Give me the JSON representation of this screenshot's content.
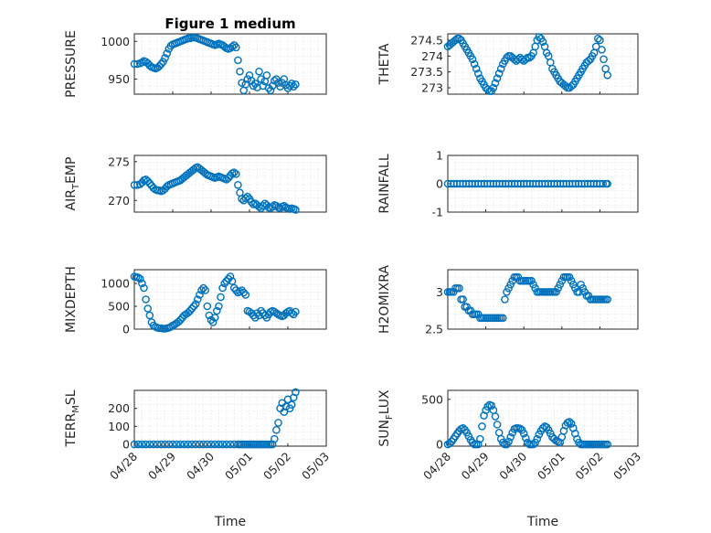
{
  "chart_data": [
    {
      "type": "scatter",
      "title": "Figure 1 medium",
      "ylabel": "PRESSURE",
      "xlim": [
        0,
        5
      ],
      "ylim": [
        930,
        1010
      ],
      "yticks": [
        950,
        1000
      ],
      "x_tick_labels": [
        "04/28",
        "04/29",
        "04/30",
        "05/01",
        "05/02",
        "05/03"
      ],
      "show_x_tick_labels": false,
      "x": [
        0.0,
        0.08,
        0.15,
        0.2,
        0.25,
        0.3,
        0.35,
        0.4,
        0.45,
        0.5,
        0.55,
        0.6,
        0.65,
        0.7,
        0.75,
        0.8,
        0.85,
        0.9,
        0.95,
        1.0,
        1.05,
        1.1,
        1.15,
        1.2,
        1.25,
        1.3,
        1.35,
        1.4,
        1.45,
        1.5,
        1.55,
        1.6,
        1.65,
        1.7,
        1.75,
        1.8,
        1.85,
        1.9,
        1.95,
        2.0,
        2.05,
        2.1,
        2.15,
        2.2,
        2.25,
        2.3,
        2.35,
        2.4,
        2.45,
        2.5,
        2.55,
        2.6,
        2.65,
        2.7,
        2.75,
        2.8,
        2.85,
        2.9,
        2.95,
        3.0,
        3.05,
        3.1,
        3.15,
        3.2,
        3.25,
        3.3,
        3.35,
        3.4,
        3.45,
        3.5,
        3.55,
        3.6,
        3.65,
        3.7,
        3.75,
        3.8,
        3.85,
        3.9,
        3.95,
        4.0,
        4.05,
        4.1,
        4.15,
        4.2
      ],
      "y": [
        970,
        970,
        971,
        972,
        974,
        973,
        971,
        968,
        966,
        965,
        964,
        965,
        967,
        970,
        973,
        978,
        984,
        990,
        994,
        996,
        997,
        998,
        999,
        1000,
        1001,
        1002,
        1003,
        1004,
        1004,
        1005,
        1005,
        1005,
        1004,
        1003,
        1002,
        1001,
        1000,
        999,
        998,
        997,
        996,
        995,
        996,
        997,
        996,
        995,
        993,
        991,
        990,
        991,
        993,
        995,
        992,
        975,
        960,
        945,
        935,
        943,
        950,
        955,
        948,
        941,
        944,
        939,
        960,
        950,
        941,
        947,
        955,
        938,
        935,
        941,
        948,
        950,
        945,
        940,
        945,
        950,
        942,
        938,
        941,
        944,
        940,
        943
      ]
    },
    {
      "type": "scatter",
      "ylabel": "THETA",
      "xlim": [
        0,
        5
      ],
      "ylim": [
        272.8,
        274.7
      ],
      "yticks": [
        273,
        273.5,
        274,
        274.5
      ],
      "show_x_tick_labels": false,
      "x": [
        0.0,
        0.05,
        0.1,
        0.15,
        0.2,
        0.25,
        0.3,
        0.35,
        0.4,
        0.45,
        0.5,
        0.55,
        0.6,
        0.65,
        0.7,
        0.75,
        0.8,
        0.85,
        0.9,
        0.95,
        1.0,
        1.05,
        1.1,
        1.15,
        1.2,
        1.25,
        1.3,
        1.35,
        1.4,
        1.45,
        1.5,
        1.55,
        1.6,
        1.65,
        1.7,
        1.75,
        1.8,
        1.85,
        1.9,
        1.95,
        2.0,
        2.05,
        2.1,
        2.15,
        2.2,
        2.25,
        2.3,
        2.35,
        2.4,
        2.45,
        2.5,
        2.55,
        2.6,
        2.65,
        2.7,
        2.75,
        2.8,
        2.85,
        2.9,
        2.95,
        3.0,
        3.05,
        3.1,
        3.15,
        3.2,
        3.25,
        3.3,
        3.35,
        3.4,
        3.45,
        3.5,
        3.55,
        3.6,
        3.65,
        3.7,
        3.75,
        3.8,
        3.85,
        3.9,
        3.95,
        4.0,
        4.05,
        4.1,
        4.15,
        4.2
      ],
      "y": [
        274.3,
        274.35,
        274.4,
        274.45,
        274.5,
        274.55,
        274.55,
        274.5,
        274.4,
        274.3,
        274.2,
        274.1,
        274.0,
        273.9,
        273.75,
        273.6,
        273.45,
        273.3,
        273.2,
        273.1,
        273.0,
        272.95,
        272.9,
        272.9,
        273.0,
        273.15,
        273.3,
        273.45,
        273.6,
        273.75,
        273.85,
        273.95,
        274.0,
        274.0,
        273.95,
        273.9,
        273.85,
        273.9,
        273.95,
        273.9,
        273.85,
        273.9,
        273.95,
        273.95,
        274.0,
        274.1,
        274.3,
        274.5,
        274.6,
        274.55,
        274.45,
        274.3,
        274.1,
        274.0,
        273.8,
        273.6,
        273.5,
        273.4,
        273.3,
        273.2,
        273.15,
        273.1,
        273.05,
        273.0,
        273.0,
        273.05,
        273.1,
        273.2,
        273.3,
        273.4,
        273.5,
        273.6,
        273.7,
        273.8,
        273.85,
        273.9,
        274.0,
        274.1,
        274.3,
        274.55,
        274.5,
        274.2,
        273.9,
        273.6,
        273.4
      ]
    },
    {
      "type": "scatter",
      "ylabel": "AIR_TEMP",
      "ylabel_main": "AIR",
      "ylabel_sub": "T",
      "ylabel_rest": "EMP",
      "xlim": [
        0,
        5
      ],
      "ylim": [
        268.5,
        275.8
      ],
      "yticks": [
        270,
        275
      ],
      "show_x_tick_labels": false,
      "x": [
        0.0,
        0.08,
        0.15,
        0.2,
        0.25,
        0.3,
        0.35,
        0.4,
        0.45,
        0.5,
        0.55,
        0.6,
        0.65,
        0.7,
        0.75,
        0.8,
        0.85,
        0.9,
        0.95,
        1.0,
        1.05,
        1.1,
        1.15,
        1.2,
        1.25,
        1.3,
        1.35,
        1.4,
        1.45,
        1.5,
        1.55,
        1.6,
        1.65,
        1.7,
        1.75,
        1.8,
        1.85,
        1.9,
        1.95,
        2.0,
        2.05,
        2.1,
        2.15,
        2.2,
        2.25,
        2.3,
        2.35,
        2.4,
        2.45,
        2.5,
        2.55,
        2.6,
        2.65,
        2.7,
        2.75,
        2.8,
        2.85,
        2.9,
        2.95,
        3.0,
        3.05,
        3.1,
        3.15,
        3.2,
        3.25,
        3.3,
        3.35,
        3.4,
        3.45,
        3.5,
        3.55,
        3.6,
        3.65,
        3.7,
        3.75,
        3.8,
        3.85,
        3.9,
        3.95,
        4.0,
        4.05,
        4.1,
        4.15,
        4.2
      ],
      "y": [
        272.0,
        272.0,
        272.1,
        272.3,
        272.6,
        272.7,
        272.5,
        272.2,
        271.9,
        271.6,
        271.4,
        271.3,
        271.3,
        271.2,
        271.3,
        271.5,
        271.8,
        272.0,
        272.1,
        272.2,
        272.3,
        272.4,
        272.5,
        272.6,
        272.8,
        273.0,
        273.2,
        273.4,
        273.6,
        273.8,
        274.0,
        274.2,
        274.3,
        274.1,
        273.9,
        273.7,
        273.5,
        273.3,
        273.2,
        273.1,
        273.0,
        272.9,
        273.0,
        273.1,
        273.0,
        272.9,
        272.8,
        272.7,
        272.9,
        273.2,
        273.5,
        273.6,
        273.4,
        272.0,
        271.0,
        270.2,
        270.0,
        270.3,
        270.5,
        270.2,
        269.8,
        269.5,
        269.6,
        269.4,
        269.2,
        269.0,
        269.3,
        269.6,
        269.4,
        269.1,
        269.0,
        269.2,
        269.4,
        269.3,
        269.1,
        269.0,
        269.2,
        269.3,
        269.1,
        269.0,
        268.9,
        269.0,
        268.9,
        268.8
      ]
    },
    {
      "type": "scatter",
      "ylabel": "RAINFALL",
      "xlim": [
        0,
        5
      ],
      "ylim": [
        -1,
        1
      ],
      "yticks": [
        -1,
        0,
        1
      ],
      "show_x_tick_labels": false,
      "x": [
        0.0,
        0.08,
        0.16,
        0.24,
        0.32,
        0.4,
        0.48,
        0.56,
        0.64,
        0.72,
        0.8,
        0.88,
        0.96,
        1.04,
        1.12,
        1.2,
        1.28,
        1.36,
        1.44,
        1.52,
        1.6,
        1.68,
        1.76,
        1.84,
        1.92,
        2.0,
        2.08,
        2.16,
        2.24,
        2.32,
        2.4,
        2.48,
        2.56,
        2.64,
        2.72,
        2.8,
        2.88,
        2.96,
        3.04,
        3.12,
        3.2,
        3.28,
        3.36,
        3.44,
        3.52,
        3.6,
        3.68,
        3.76,
        3.84,
        3.92,
        4.0,
        4.08,
        4.16,
        4.2
      ],
      "y": [
        0,
        0,
        0,
        0,
        0,
        0,
        0,
        0,
        0,
        0,
        0,
        0,
        0,
        0,
        0,
        0,
        0,
        0,
        0,
        0,
        0,
        0,
        0,
        0,
        0,
        0,
        0,
        0,
        0,
        0,
        0,
        0,
        0,
        0,
        0,
        0,
        0,
        0,
        0,
        0,
        0,
        0,
        0,
        0,
        0,
        0,
        0,
        0,
        0,
        0,
        0,
        0,
        0,
        0
      ]
    },
    {
      "type": "scatter",
      "ylabel": "MIXDEPTH",
      "xlim": [
        0,
        5
      ],
      "ylim": [
        0,
        1300
      ],
      "yticks": [
        0,
        500,
        1000
      ],
      "show_x_tick_labels": false,
      "x": [
        0.0,
        0.05,
        0.1,
        0.15,
        0.2,
        0.25,
        0.3,
        0.35,
        0.4,
        0.45,
        0.5,
        0.55,
        0.6,
        0.65,
        0.7,
        0.75,
        0.8,
        0.85,
        0.9,
        0.95,
        1.0,
        1.05,
        1.1,
        1.15,
        1.2,
        1.25,
        1.3,
        1.35,
        1.4,
        1.45,
        1.5,
        1.55,
        1.6,
        1.65,
        1.7,
        1.75,
        1.8,
        1.85,
        1.9,
        1.95,
        2.0,
        2.05,
        2.1,
        2.15,
        2.2,
        2.25,
        2.3,
        2.35,
        2.4,
        2.45,
        2.5,
        2.55,
        2.6,
        2.65,
        2.7,
        2.75,
        2.8,
        2.85,
        2.9,
        2.95,
        3.0,
        3.05,
        3.1,
        3.15,
        3.2,
        3.25,
        3.3,
        3.35,
        3.4,
        3.45,
        3.5,
        3.55,
        3.6,
        3.65,
        3.7,
        3.75,
        3.8,
        3.85,
        3.9,
        3.95,
        4.0,
        4.05,
        4.1,
        4.15,
        4.2
      ],
      "y": [
        1150,
        1140,
        1130,
        1100,
        1000,
        900,
        650,
        450,
        300,
        150,
        80,
        50,
        30,
        20,
        20,
        10,
        10,
        20,
        30,
        50,
        80,
        100,
        130,
        160,
        200,
        250,
        300,
        330,
        360,
        400,
        450,
        500,
        550,
        650,
        750,
        850,
        900,
        850,
        500,
        300,
        200,
        150,
        250,
        400,
        500,
        700,
        900,
        1000,
        1050,
        1100,
        1150,
        1050,
        900,
        850,
        800,
        820,
        850,
        800,
        750,
        400,
        380,
        350,
        300,
        250,
        350,
        300,
        400,
        350,
        300,
        250,
        320,
        380,
        400,
        380,
        350,
        320,
        300,
        280,
        300,
        350,
        380,
        400,
        350,
        320,
        380
      ]
    },
    {
      "type": "scatter",
      "ylabel": "H2OMIXRA",
      "xlim": [
        0,
        5
      ],
      "ylim": [
        2.5,
        3.3
      ],
      "yticks": [
        2.5,
        3
      ],
      "show_x_tick_labels": false,
      "x": [
        0.0,
        0.05,
        0.1,
        0.15,
        0.2,
        0.25,
        0.3,
        0.35,
        0.4,
        0.45,
        0.5,
        0.55,
        0.6,
        0.65,
        0.7,
        0.75,
        0.8,
        0.85,
        0.9,
        0.95,
        1.0,
        1.05,
        1.1,
        1.15,
        1.2,
        1.25,
        1.3,
        1.35,
        1.4,
        1.45,
        1.5,
        1.55,
        1.6,
        1.65,
        1.7,
        1.75,
        1.8,
        1.85,
        1.9,
        1.95,
        2.0,
        2.05,
        2.1,
        2.15,
        2.2,
        2.25,
        2.3,
        2.35,
        2.4,
        2.45,
        2.5,
        2.55,
        2.6,
        2.65,
        2.7,
        2.75,
        2.8,
        2.85,
        2.9,
        2.95,
        3.0,
        3.05,
        3.1,
        3.15,
        3.2,
        3.25,
        3.3,
        3.35,
        3.4,
        3.45,
        3.5,
        3.55,
        3.6,
        3.65,
        3.7,
        3.75,
        3.8,
        3.85,
        3.9,
        3.95,
        4.0,
        4.05,
        4.1,
        4.15,
        4.2
      ],
      "y": [
        3.0,
        3.0,
        3.0,
        3.0,
        3.05,
        3.05,
        3.05,
        2.9,
        2.9,
        2.8,
        2.8,
        2.75,
        2.75,
        2.7,
        2.7,
        2.7,
        2.7,
        2.65,
        2.65,
        2.65,
        2.65,
        2.65,
        2.65,
        2.65,
        2.65,
        2.65,
        2.65,
        2.65,
        2.65,
        2.65,
        2.9,
        3.0,
        3.05,
        3.1,
        3.15,
        3.2,
        3.2,
        3.2,
        3.15,
        3.15,
        3.15,
        3.15,
        3.15,
        3.15,
        3.15,
        3.1,
        3.05,
        3.0,
        3.0,
        3.0,
        3.0,
        3.0,
        3.0,
        3.0,
        3.0,
        3.0,
        3.0,
        3.0,
        3.05,
        3.1,
        3.15,
        3.2,
        3.2,
        3.2,
        3.2,
        3.15,
        3.1,
        3.05,
        3.0,
        3.0,
        3.1,
        3.05,
        3.0,
        2.95,
        2.95,
        2.9,
        2.9,
        2.9,
        2.9,
        2.9,
        2.9,
        2.9,
        2.9,
        2.9,
        2.9
      ]
    },
    {
      "type": "scatter",
      "ylabel": "TERR_MSL",
      "ylabel_main": "TERR",
      "ylabel_sub": "M",
      "ylabel_rest": "SL",
      "xlabel": "Time",
      "xlim": [
        0,
        5
      ],
      "ylim": [
        -10,
        300
      ],
      "yticks": [
        0,
        100,
        200
      ],
      "x_tick_labels": [
        "04/28",
        "04/29",
        "04/30",
        "05/01",
        "05/02",
        "05/03"
      ],
      "show_x_tick_labels": true,
      "x": [
        0.0,
        0.1,
        0.2,
        0.3,
        0.4,
        0.5,
        0.6,
        0.7,
        0.8,
        0.9,
        1.0,
        1.1,
        1.2,
        1.3,
        1.4,
        1.5,
        1.6,
        1.7,
        1.8,
        1.9,
        2.0,
        2.1,
        2.2,
        2.3,
        2.4,
        2.5,
        2.6,
        2.7,
        2.75,
        2.8,
        2.85,
        2.9,
        2.95,
        3.0,
        3.05,
        3.1,
        3.15,
        3.2,
        3.25,
        3.3,
        3.35,
        3.4,
        3.45,
        3.5,
        3.55,
        3.6,
        3.65,
        3.7,
        3.75,
        3.8,
        3.85,
        3.9,
        3.95,
        4.0,
        4.05,
        4.1,
        4.15,
        4.2
      ],
      "y": [
        0,
        0,
        0,
        0,
        0,
        0,
        0,
        0,
        0,
        0,
        0,
        0,
        0,
        0,
        0,
        0,
        0,
        0,
        0,
        0,
        0,
        0,
        0,
        0,
        0,
        0,
        0,
        0,
        0,
        0,
        0,
        0,
        0,
        0,
        0,
        0,
        0,
        0,
        0,
        0,
        0,
        0,
        0,
        0,
        0,
        0,
        30,
        80,
        120,
        200,
        230,
        180,
        210,
        250,
        200,
        220,
        260,
        290
      ]
    },
    {
      "type": "scatter",
      "ylabel": "SUN_FLUX",
      "ylabel_main": "SUN",
      "ylabel_sub": "F",
      "ylabel_rest": "LUX",
      "xlabel": "Time",
      "xlim": [
        0,
        5
      ],
      "ylim": [
        -20,
        600
      ],
      "yticks": [
        0,
        500
      ],
      "x_tick_labels": [
        "04/28",
        "04/29",
        "04/30",
        "05/01",
        "05/02",
        "05/03"
      ],
      "show_x_tick_labels": true,
      "x": [
        0.0,
        0.05,
        0.1,
        0.15,
        0.2,
        0.25,
        0.3,
        0.35,
        0.4,
        0.45,
        0.5,
        0.55,
        0.6,
        0.65,
        0.7,
        0.75,
        0.8,
        0.85,
        0.9,
        0.95,
        1.0,
        1.05,
        1.1,
        1.15,
        1.2,
        1.25,
        1.3,
        1.35,
        1.4,
        1.45,
        1.5,
        1.55,
        1.6,
        1.65,
        1.7,
        1.75,
        1.8,
        1.85,
        1.9,
        1.95,
        2.0,
        2.05,
        2.1,
        2.15,
        2.2,
        2.25,
        2.3,
        2.35,
        2.4,
        2.45,
        2.5,
        2.55,
        2.6,
        2.65,
        2.7,
        2.75,
        2.8,
        2.85,
        2.9,
        2.95,
        3.0,
        3.05,
        3.1,
        3.15,
        3.2,
        3.25,
        3.3,
        3.35,
        3.4,
        3.45,
        3.5,
        3.55,
        3.6,
        3.65,
        3.7,
        3.75,
        3.8,
        3.85,
        3.9,
        3.95,
        4.0,
        4.05,
        4.1,
        4.15,
        4.2
      ],
      "y": [
        0,
        10,
        30,
        60,
        90,
        120,
        150,
        170,
        180,
        160,
        130,
        90,
        50,
        20,
        0,
        0,
        0,
        60,
        200,
        320,
        380,
        420,
        440,
        430,
        380,
        310,
        220,
        130,
        60,
        20,
        0,
        0,
        30,
        80,
        130,
        170,
        180,
        180,
        175,
        160,
        120,
        70,
        20,
        0,
        0,
        0,
        20,
        60,
        110,
        150,
        180,
        200,
        190,
        160,
        120,
        80,
        60,
        40,
        30,
        20,
        80,
        150,
        210,
        240,
        250,
        230,
        180,
        120,
        60,
        20,
        0,
        0,
        0,
        0,
        0,
        0,
        0,
        0,
        0,
        0,
        0,
        0,
        0,
        0,
        0
      ]
    }
  ]
}
